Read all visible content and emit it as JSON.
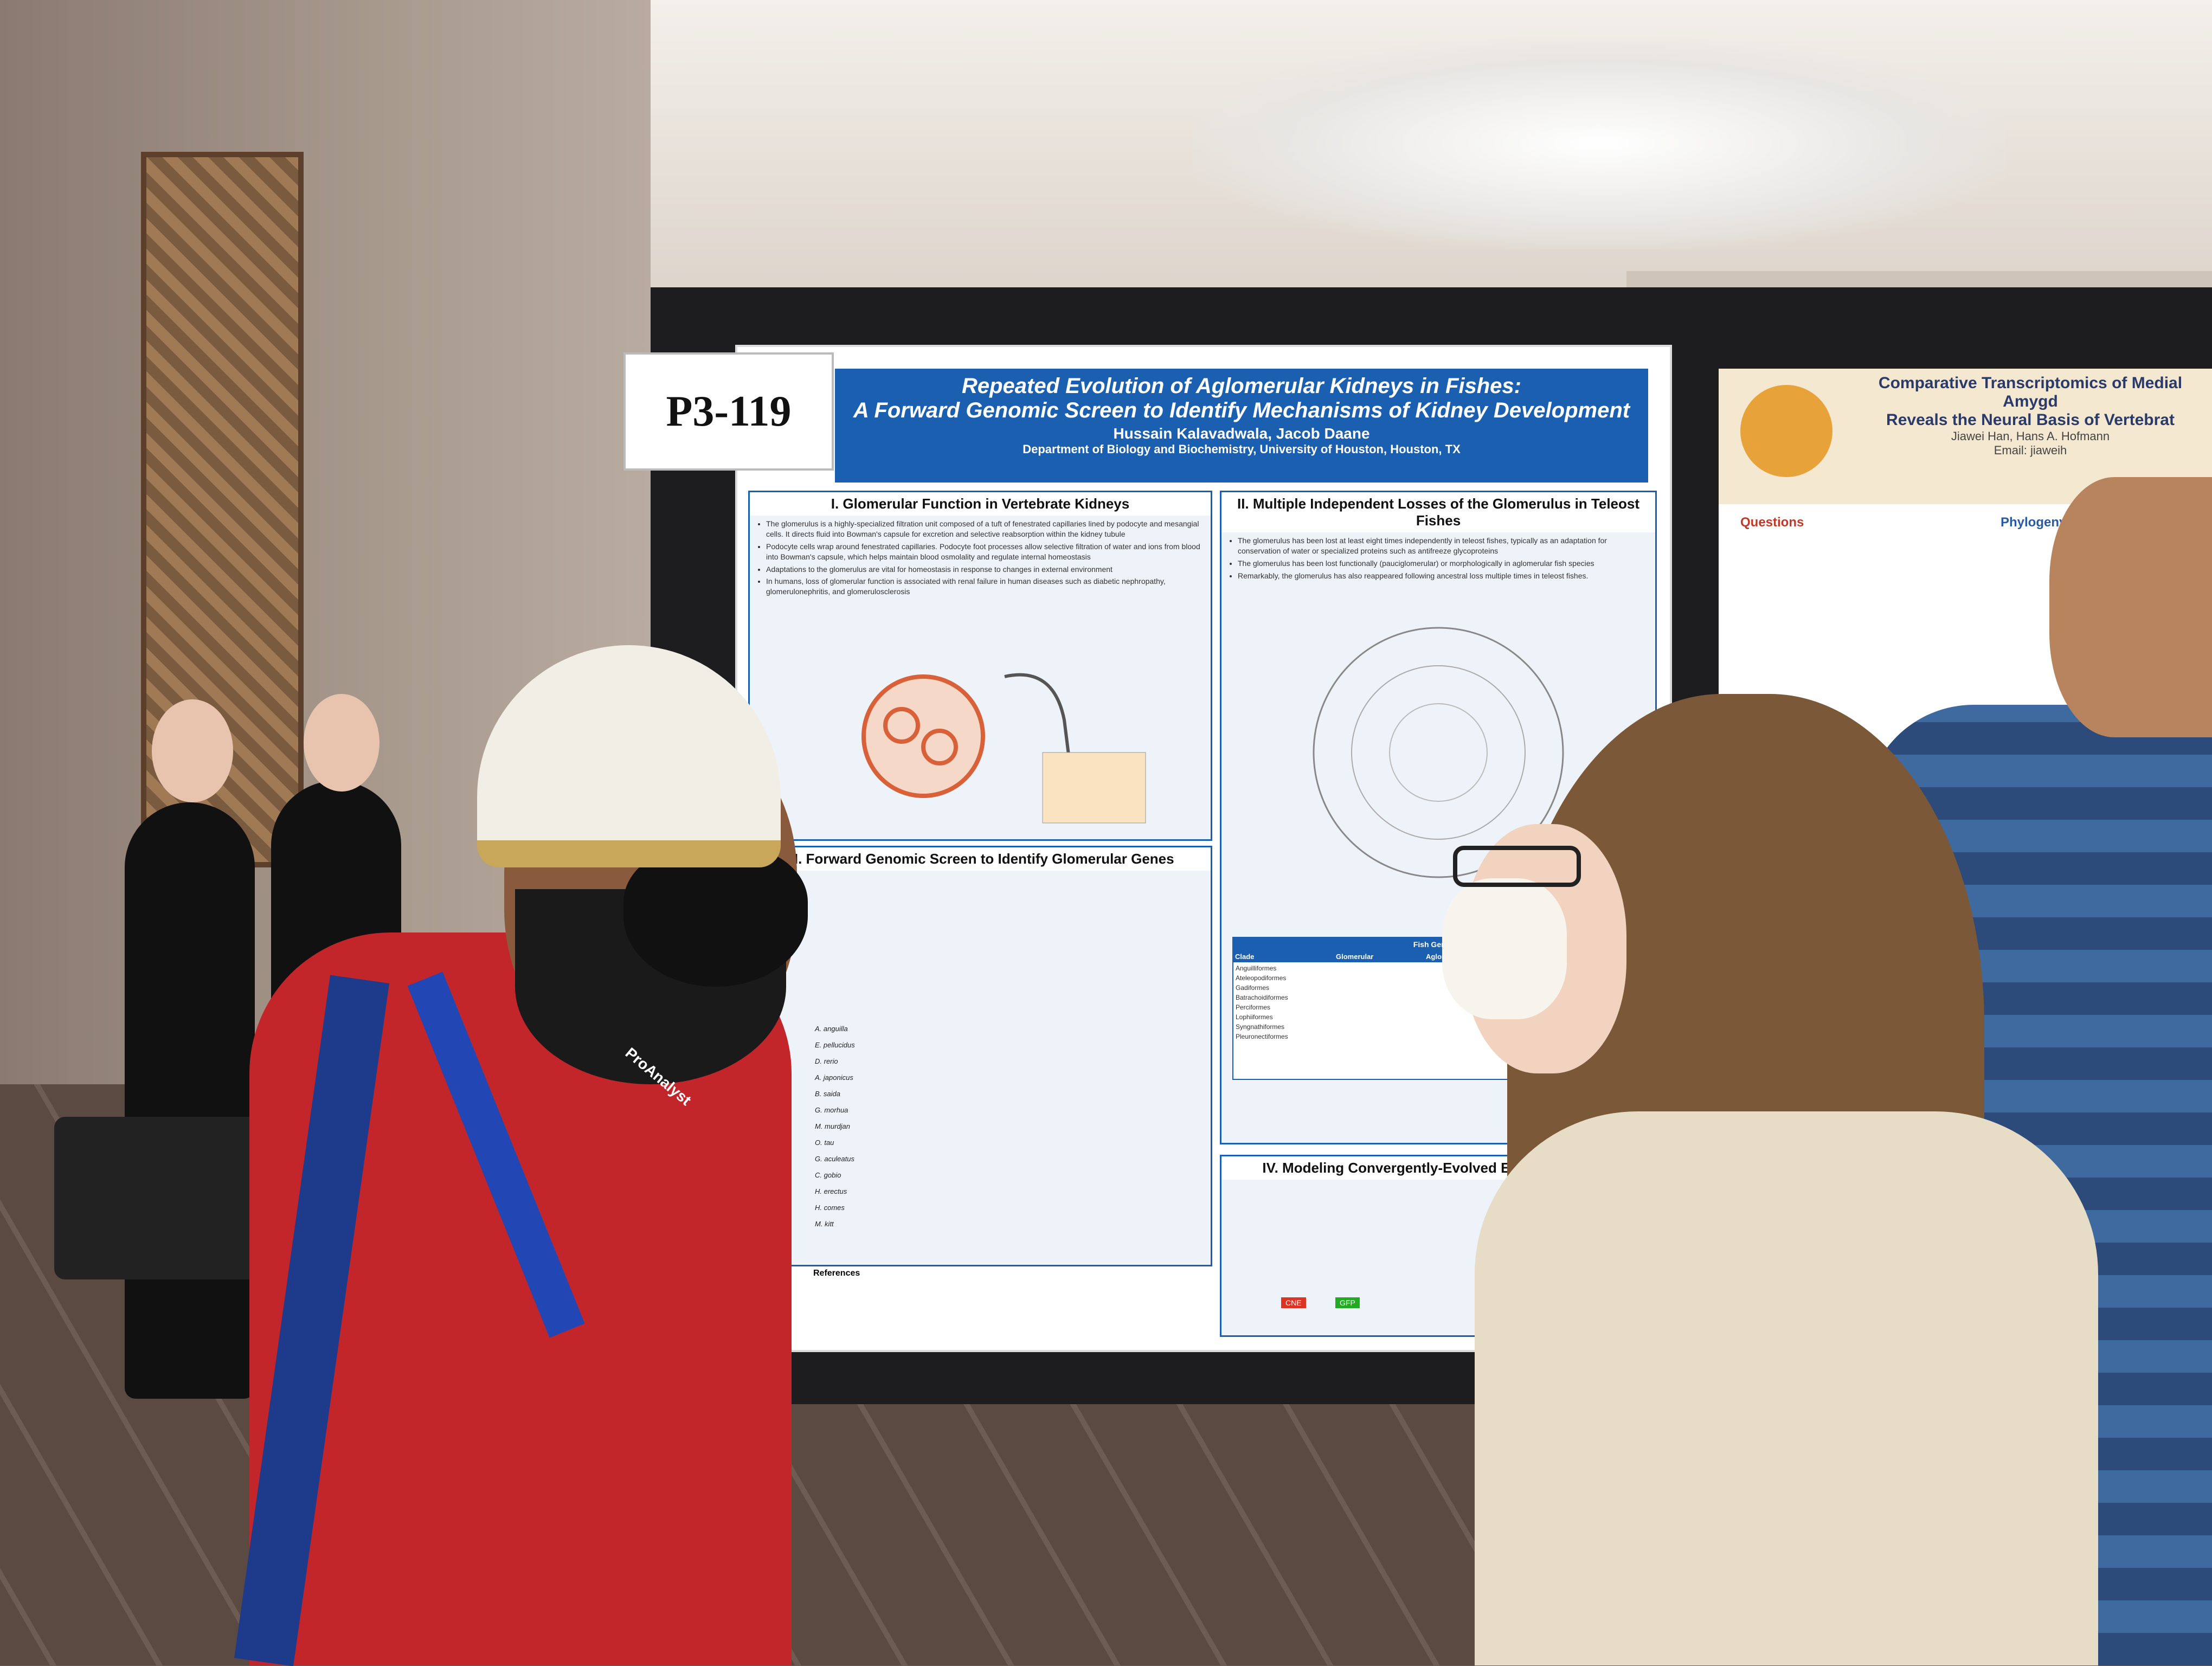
{
  "poster_label": "P3-119",
  "poster": {
    "title_line1": "Repeated Evolution of Aglomerular Kidneys in Fishes:",
    "title_line2": "A Forward Genomic Screen to Identify Mechanisms of Kidney Development",
    "authors": "Hussain Kalavadwala, Jacob Daane",
    "affiliation": "Department of Biology and Biochemistry, University of Houston, Houston, TX",
    "section1_title": "I.  Glomerular Function in Vertebrate Kidneys",
    "section1_bullets": [
      "The glomerulus is a highly-specialized filtration unit composed of a tuft of fenestrated capillaries lined by podocyte and mesangial cells. It directs fluid into Bowman's capsule for excretion and selective reabsorption within the kidney tubule",
      "Podocyte cells wrap around fenestrated capillaries. Podocyte foot processes allow selective filtration of water and ions from blood into Bowman's capsule, which helps maintain blood osmolality and regulate internal homeostasis",
      "Adaptations to the glomerulus are vital for homeostasis in response to changes in external environment",
      "In humans, loss of glomerular function is associated with renal failure in human diseases such as diabetic nephropathy, glomerulonephritis, and glomerulosclerosis"
    ],
    "section2_title": "II.  Multiple Independent Losses of the Glomerulus in Teleost Fishes",
    "section2_bullets": [
      "The glomerulus has been lost at least eight times independently in teleost fishes, typically as an adaptation for conservation of water or specialized proteins such as antifreeze glycoproteins",
      "The glomerulus has been lost functionally (pauciglomerular) or morphologically in aglomerular fish species",
      "Remarkably, the glomerulus has also reappeared following ancestral loss multiple times in teleost fishes."
    ],
    "section3_title": "III.  Forward Genomic Screen to Identify Glomerular Genes",
    "section4_title": "IV.  Modeling Convergently-Evolved Elements in Zebr",
    "references_title": "References",
    "tree_species": [
      "A. anguilla",
      "E. pellucidus",
      "D. rerio",
      "A. japonicus",
      "B. saida",
      "G. morhua",
      "M. murdjan",
      "O. tau",
      "G. aculeatus",
      "C. gobio",
      "H. erectus",
      "H. comes",
      "M. kitt"
    ],
    "table_header": [
      "Clade",
      "Glomerular",
      "Aglomerular"
    ],
    "table_group": "Fish Genomes",
    "table_rows": [
      "Anguilliformes",
      "Ateleopodiformes",
      "Gadiformes",
      "Batrachoidiformes",
      "Perciformes",
      "Lophiiformes",
      "Syngnathiformes",
      "Pleuronectiformes"
    ],
    "legend_cne": "CNE",
    "legend_gfp": "GFP"
  },
  "right_poster": {
    "title_line1": "Comparative Transcriptomics of Medial Amygd",
    "title_line2": "Reveals the Neural Basis of Vertebrat",
    "authors": "Jiawei Han, Hans A. Hofmann",
    "questions_title": "Questions",
    "phylogeny_title": "Phylogeny Drives T",
    "email": "Email: jiaweih"
  },
  "badge": "ProAnalyst"
}
